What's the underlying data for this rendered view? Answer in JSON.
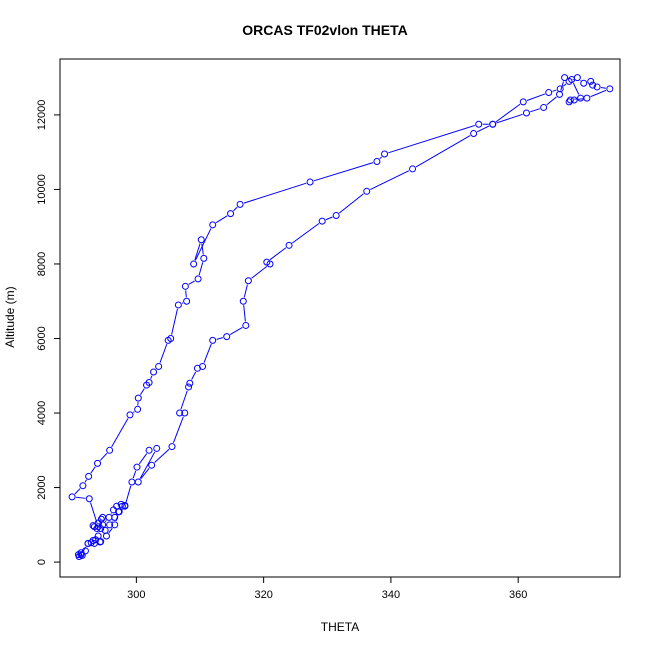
{
  "chart_data": {
    "type": "line",
    "title": "ORCAS TF02vlon THETA",
    "xlabel": "THETA",
    "ylabel": "Altitude (m)",
    "xlim": [
      288,
      376
    ],
    "ylim": [
      -400,
      13500
    ],
    "x_ticks": [
      300,
      320,
      340,
      360
    ],
    "y_ticks": [
      0,
      2000,
      4000,
      6000,
      8000,
      10000,
      12000
    ],
    "grid": false,
    "line_color": "#0000ff",
    "marker": "open-circle",
    "series": [
      {
        "x": [
          291.0,
          291.5,
          291.3,
          292.0,
          292.4,
          292.9,
          293.6,
          293.2,
          294.3,
          294.0,
          293.8,
          293.4,
          293.2,
          294.0,
          294.5,
          294.7,
          294.4,
          295.1,
          295.8,
          296.6,
          297.2,
          297.8,
          298.2,
          297.6,
          296.9,
          296.4,
          295.7,
          294.7,
          294.0,
          292.6,
          289.9,
          291.6,
          292.5,
          293.9,
          295.8,
          299.0,
          300.2,
          300.3,
          301.6,
          302.0,
          302.7,
          303.5,
          305.0,
          305.4,
          306.6,
          307.9,
          307.7,
          309.7,
          310.6,
          310.2,
          309.0,
          312.0,
          314.8,
          316.3,
          327.3,
          337.8,
          339.0,
          353.8,
          356.0,
          360.8,
          364.8,
          366.6,
          368.0,
          369.3,
          370.3,
          371.4,
          371.7,
          372.4,
          374.4,
          370.8,
          368.8,
          368.0,
          368.2,
          369.8,
          368.4,
          367.3,
          366.5,
          364.0,
          361.3,
          356.0,
          353.0,
          343.4,
          336.2,
          331.4,
          329.2,
          324.0,
          320.5,
          321.0,
          317.6,
          316.8,
          317.2,
          314.2,
          312.0,
          310.4,
          309.6,
          308.4,
          308.2,
          306.8,
          307.6,
          305.6,
          302.4,
          300.3,
          303.2,
          302.0,
          300.1,
          299.3,
          298.2,
          297.3,
          296.6,
          295.3,
          294.4,
          293.4,
          292.4,
          291.3,
          290.9
        ],
        "y": [
          150,
          180,
          250,
          300,
          500,
          520,
          600,
          580,
          540,
          700,
          900,
          950,
          980,
          1050,
          1150,
          1200,
          900,
          850,
          1000,
          1200,
          1350,
          1500,
          1520,
          1550,
          1500,
          1400,
          1200,
          1000,
          950,
          1700,
          1750,
          2050,
          2300,
          2650,
          3000,
          3950,
          4100,
          4400,
          4750,
          4820,
          5100,
          5250,
          5950,
          6000,
          6900,
          7000,
          7400,
          7600,
          8150,
          8650,
          8000,
          9050,
          9350,
          9600,
          10200,
          10750,
          10950,
          11750,
          11750,
          12350,
          12600,
          12700,
          12900,
          13000,
          12850,
          12900,
          12800,
          12750,
          12700,
          12450,
          12400,
          12350,
          12400,
          12450,
          12950,
          13000,
          12550,
          12200,
          12050,
          11750,
          11500,
          10550,
          9950,
          9300,
          9150,
          8500,
          8050,
          8000,
          7550,
          7000,
          6350,
          6050,
          5950,
          5250,
          5200,
          4800,
          4700,
          4000,
          4000,
          3100,
          2600,
          2150,
          3050,
          3000,
          2550,
          2150,
          1500,
          1350,
          1000,
          700,
          550,
          500,
          500,
          200,
          200
        ]
      }
    ]
  }
}
